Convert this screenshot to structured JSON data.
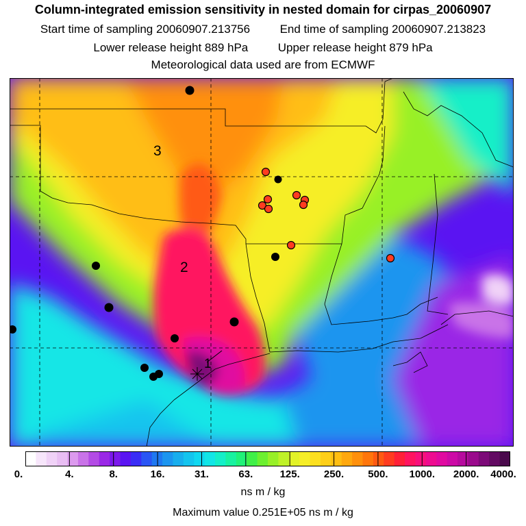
{
  "title": "Column-integrated emission sensitivity in nested domain for cirpas_20060907",
  "sampling": {
    "start_label": "Start time of sampling",
    "start_value": "20060907.213756",
    "end_label": "End time of sampling",
    "end_value": "20060907.213823"
  },
  "release": {
    "lower_label": "Lower release height",
    "lower_value": "889 hPa",
    "upper_label": "Upper release height",
    "upper_value": "879 hPa"
  },
  "met_note": "Meteorological data used are from ECMWF",
  "map_labels": {
    "label_1": "1",
    "label_2": "2",
    "label_3": "3"
  },
  "colorbar": {
    "ticks": [
      "0.",
      "4.",
      "8.",
      "16.",
      "31.",
      "63.",
      "125.",
      "250.",
      "500.",
      "1000.",
      "2000.",
      "4000."
    ],
    "colors": [
      "#ffffff",
      "#f7e6fb",
      "#f0d2f7",
      "#e9bef3",
      "#dc9aee",
      "#c973e8",
      "#b34be5",
      "#9a28e6",
      "#7c18ec",
      "#5a14f2",
      "#3a2df5",
      "#2a55f4",
      "#1f78f1",
      "#1c95ef",
      "#18aeed",
      "#14c4ee",
      "#10d8f0",
      "#12e6e6",
      "#14efc8",
      "#18f2a0",
      "#20f278",
      "#40f048",
      "#6cf030",
      "#98f028",
      "#bff228",
      "#e2f228",
      "#f6ee28",
      "#fce020",
      "#fecf18",
      "#ffbe12",
      "#ffa80e",
      "#ff900c",
      "#ff760c",
      "#ff5a12",
      "#ff3c20",
      "#ff2038",
      "#ff1460",
      "#f8107c",
      "#ee0c90",
      "#e00aa0",
      "#cc0aa6",
      "#b60a9e",
      "#9a0a8c",
      "#7c0a78",
      "#620a62",
      "#4a0a4c"
    ],
    "units": "ns m / kg"
  },
  "maximum": "Maximum value  0.251E+05 ns m / kg"
}
